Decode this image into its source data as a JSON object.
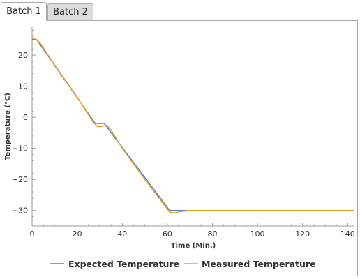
{
  "tabs": [
    {
      "label": "Batch 1",
      "active": true
    },
    {
      "label": "Batch 2",
      "active": false
    }
  ],
  "chart_data": {
    "type": "line",
    "title": "",
    "xlabel": "Time  (Min.)",
    "ylabel": "Temperature  (°C)",
    "xlim": [
      0,
      143
    ],
    "ylim": [
      -35,
      29
    ],
    "xticks": [
      0,
      20,
      40,
      60,
      80,
      100,
      120,
      140
    ],
    "yticks": [
      20,
      10,
      0,
      -10,
      -20,
      -30
    ],
    "legend_position": "bottom",
    "series": [
      {
        "name": "Expected Temperature",
        "color": "#5b7fbf",
        "x": [
          0,
          2,
          28,
          32,
          61,
          143
        ],
        "y": [
          25,
          25,
          -2,
          -2,
          -30,
          -30
        ]
      },
      {
        "name": "Measured Temperature",
        "color": "#e8a020",
        "x": [
          0,
          2,
          4,
          8,
          20,
          27,
          29,
          31,
          33,
          35,
          40,
          50,
          60,
          61,
          63,
          66,
          70,
          80,
          100,
          120,
          143
        ],
        "y": [
          25.5,
          25,
          23.5,
          19,
          6.5,
          -1.5,
          -3,
          -3,
          -2.5,
          -4,
          -10,
          -20,
          -29.5,
          -30.5,
          -30.8,
          -30.3,
          -30,
          -30,
          -30,
          -30,
          -30
        ]
      }
    ]
  }
}
